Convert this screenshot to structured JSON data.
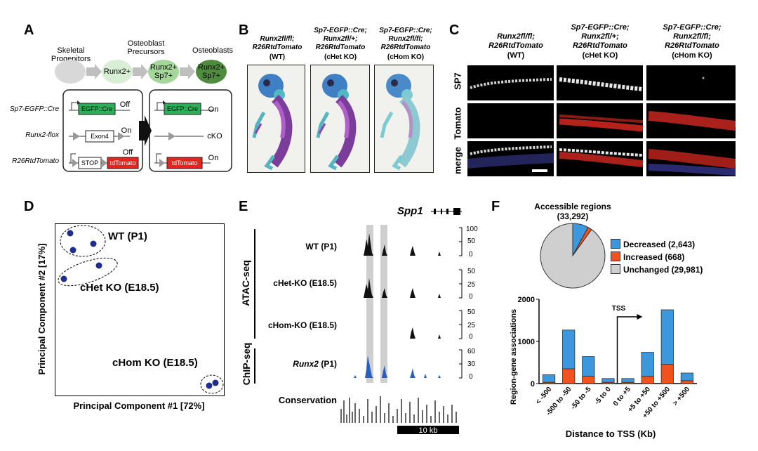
{
  "panels": {
    "A": "A",
    "B": "B",
    "C": "C",
    "D": "D",
    "E": "E",
    "F": "F"
  },
  "panelA": {
    "stages": [
      "Skeletal Progenitors",
      "Osteoblast Precursors",
      "Osteoblasts"
    ],
    "cells": [
      "Runx2+",
      "Runx2+ Sp7+",
      "Runx2+ Sp7+"
    ],
    "rows": [
      "Sp7-EGFP::Cre",
      "Runx2-flox",
      "R26RtdTomato"
    ],
    "left_state": [
      "Off",
      "On",
      "Off"
    ],
    "right_state": [
      "On",
      "cKO",
      "On"
    ],
    "boxes": {
      "egfp": "EGFP::Cre",
      "exon": "Exon4",
      "stop": "STOP",
      "tomato": "tdTomato"
    },
    "colors": {
      "egfp": "#2fae5a",
      "tomato": "#e8231f",
      "cell1": "#d8d8d8",
      "cell2": "#d9efd5",
      "cell3": "#a5d69a",
      "cell4": "#4f8c3d"
    }
  },
  "panelB": {
    "cols": [
      {
        "l1": "Runx2fl/fl;",
        "l2": "R26RtdTomato",
        "l3": "(WT)"
      },
      {
        "l1": "Sp7-EGFP::Cre;",
        "l2": "Runx2fl/+;",
        "l3": "R26RtdTomato",
        "l4": "(cHet KO)"
      },
      {
        "l1": "Sp7-EGFP::Cre;",
        "l2": "Runx2fl/fl;",
        "l3": "R26RtdTomato",
        "l4": "(cHom KO)"
      }
    ]
  },
  "panelC": {
    "cols": [
      {
        "l1": "Runx2fl/fl;",
        "l2": "R26RtdTomato",
        "l3": "(WT)"
      },
      {
        "l1": "Sp7-EGFP::Cre;",
        "l2": "Runx2fl/+;",
        "l3": "R26RtdTomato",
        "l4": "(cHet KO)"
      },
      {
        "l1": "Sp7-EGFP::Cre;",
        "l2": "Runx2fl/fl;",
        "l3": "R26RtdTomato",
        "l4": "(cHom KO)"
      }
    ],
    "rows": [
      "SP7",
      "Tomato",
      "merge"
    ]
  },
  "panelD": {
    "xlabel": "Principal Component #1 [72%]",
    "ylabel": "Principal Component #2 [17%]",
    "groups": [
      "WT (P1)",
      "cHet KO (E18.5)",
      "cHom KO (E18.5)"
    ]
  },
  "panelE": {
    "gene": "Spp1",
    "assay1": "ATAC-seq",
    "assay2": "ChIP-seq",
    "tracks": [
      {
        "label": "WT (P1)",
        "ticks": [
          "100",
          "50",
          "0"
        ]
      },
      {
        "label": "cHet-KO (E18.5)",
        "ticks": [
          "50",
          "25",
          "0"
        ]
      },
      {
        "label": "cHom-KO (E18.5)",
        "ticks": [
          "50",
          "25",
          "0"
        ]
      },
      {
        "label": "Runx2",
        "label2": "(P1)",
        "ticks": [
          "60",
          "30",
          "0"
        ]
      }
    ],
    "conservation": "Conservation",
    "scale": "10 kb"
  },
  "panelF": {
    "pie_title": "Accessible regions",
    "pie_total": "(33,292)",
    "legend": [
      {
        "label": "Decreased (2,643)",
        "color": "#3d97dc"
      },
      {
        "label": "Increased (668)",
        "color": "#f0531e"
      },
      {
        "label": "Unchanged (29,981)",
        "color": "#cfcfcf"
      }
    ],
    "tss": "TSS",
    "xlabel": "Distance to TSS (Kb)",
    "ylabel": "Region-gene associations"
  },
  "chart_data": {
    "type": "bar",
    "stacked": true,
    "categories": [
      "< -500",
      "-500 to -50",
      "-50 to -5",
      "-5 to 0",
      "0 to +5",
      "+5 to +50",
      "+50 to +500",
      "> +500"
    ],
    "series": [
      {
        "name": "Increased",
        "color": "#f0531e",
        "values": [
          30,
          350,
          170,
          30,
          30,
          170,
          460,
          70
        ]
      },
      {
        "name": "Decreased",
        "color": "#3d97dc",
        "values": [
          180,
          920,
          470,
          90,
          90,
          570,
          1290,
          180
        ]
      }
    ],
    "ylabel": "Region-gene associations",
    "xlabel": "Distance to TSS (Kb)",
    "ylim": [
      0,
      2000
    ],
    "yticks": [
      "0",
      "1000",
      "2000"
    ],
    "pie": {
      "values": [
        2643,
        668,
        29981
      ]
    }
  }
}
